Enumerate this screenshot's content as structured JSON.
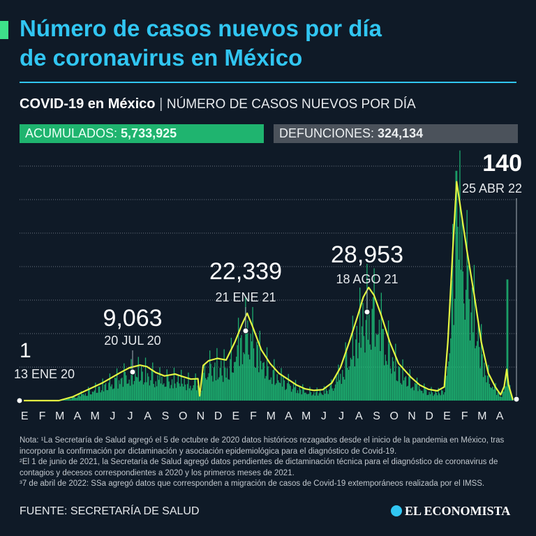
{
  "header": {
    "title_line1": "Número de casos nuevos por día",
    "title_line2": "de coronavirus en México",
    "subtitle_strong": "COVID-19 en México",
    "subtitle_sep": "|",
    "subtitle_light": "NÚMERO DE CASOS NUEVOS POR DÍA"
  },
  "stats": {
    "acumulados_label": "ACUMULADOS:",
    "acumulados_value": "5,733,925",
    "defunciones_label": "DEFUNCIONES:",
    "defunciones_value": "324,134"
  },
  "chart_data": {
    "type": "bar",
    "series": [
      {
        "type": "bar",
        "values_description": "daily new cases"
      },
      {
        "type": "line",
        "values_description": "7-day average"
      }
    ],
    "x_tick_labels": [
      "E",
      "F",
      "M",
      "A",
      "M",
      "J",
      "J",
      "A",
      "S",
      "O",
      "N",
      "D",
      "E",
      "F",
      "M",
      "A",
      "M",
      "J",
      "J",
      "A",
      "S",
      "O",
      "N",
      "D",
      "E",
      "F",
      "M",
      "A"
    ],
    "ylim": [
      0,
      60000
    ],
    "grid": true,
    "colors": {
      "bars": "#1fc47a",
      "line": "#e4f542",
      "grid": "#6b7480"
    },
    "annotations": [
      {
        "value": "1",
        "date": "13 ENE 20",
        "x_month": 0.4,
        "y": 1
      },
      {
        "value": "9,063",
        "date": "20 JUL 20",
        "x_month": 6.65,
        "y": 9063
      },
      {
        "value": "22,339",
        "date": "21 ENE 21",
        "x_month": 12.7,
        "y": 22339
      },
      {
        "value": "28,953",
        "date": "18 AGO 21",
        "x_month": 19.6,
        "y": 28953
      },
      {
        "value": "140",
        "date": "25 ABR 22",
        "x_month": 27.8,
        "y": 140
      }
    ],
    "avg_curve": [
      [
        0,
        0
      ],
      [
        2,
        0
      ],
      [
        2.8,
        1000
      ],
      [
        3.5,
        2500
      ],
      [
        4.5,
        4600
      ],
      [
        5.5,
        7200
      ],
      [
        6,
        8400
      ],
      [
        6.6,
        9063
      ],
      [
        7,
        8700
      ],
      [
        7.5,
        7200
      ],
      [
        8,
        6300
      ],
      [
        8.6,
        6800
      ],
      [
        9,
        6200
      ],
      [
        9.5,
        5500
      ],
      [
        9.9,
        5600
      ],
      [
        10,
        1200
      ],
      [
        10.2,
        9000
      ],
      [
        10.5,
        10200
      ],
      [
        11,
        10800
      ],
      [
        11.5,
        10400
      ],
      [
        12,
        15000
      ],
      [
        12.4,
        19500
      ],
      [
        12.7,
        22339
      ],
      [
        13,
        19000
      ],
      [
        13.5,
        13000
      ],
      [
        14,
        9500
      ],
      [
        14.5,
        7000
      ],
      [
        15,
        5500
      ],
      [
        15.5,
        4000
      ],
      [
        16,
        3000
      ],
      [
        16.5,
        2600
      ],
      [
        17,
        2800
      ],
      [
        17.5,
        4500
      ],
      [
        18,
        8500
      ],
      [
        18.5,
        15000
      ],
      [
        19,
        22000
      ],
      [
        19.3,
        26500
      ],
      [
        19.6,
        28953
      ],
      [
        19.9,
        27000
      ],
      [
        20.3,
        22000
      ],
      [
        20.8,
        15000
      ],
      [
        21.3,
        9500
      ],
      [
        22,
        6000
      ],
      [
        22.5,
        4000
      ],
      [
        23,
        2900
      ],
      [
        23.5,
        2500
      ],
      [
        23.9,
        3500
      ],
      [
        24.1,
        15000
      ],
      [
        24.4,
        40000
      ],
      [
        24.6,
        56000
      ],
      [
        24.8,
        50000
      ],
      [
        25.2,
        38000
      ],
      [
        25.6,
        27000
      ],
      [
        26,
        15000
      ],
      [
        26.4,
        7000
      ],
      [
        26.8,
        3500
      ],
      [
        27.1,
        1500
      ],
      [
        27.3,
        3600
      ],
      [
        27.45,
        8000
      ],
      [
        27.55,
        4000
      ],
      [
        27.8,
        140
      ]
    ]
  },
  "notes": [
    "Nota: ¹La Secretaría de Salud agregó el 5 de octubre de 2020 datos históricos rezagados desde el inicio de la pandemia en México, tras incorporar la confirmación por dictaminación y asociación epidemiológica para el diagnóstico de Covid-19.",
    "²El 1 de junio de 2021, la Secretaría de Salud agregó datos pendientes de dictaminación técnica para el diagnóstico de coronavirus de contagios y decesos correspondientes a 2020 y los primeros meses de 2021.",
    "³7 de abril de 2022: SSa agregó datos que corresponden a migración de casos de Covid-19 extemporáneos realizada por el IMSS."
  ],
  "footer": {
    "source": "FUENTE: SECRETARÍA DE SALUD",
    "logo_text": "EL ECONOMISTA"
  }
}
